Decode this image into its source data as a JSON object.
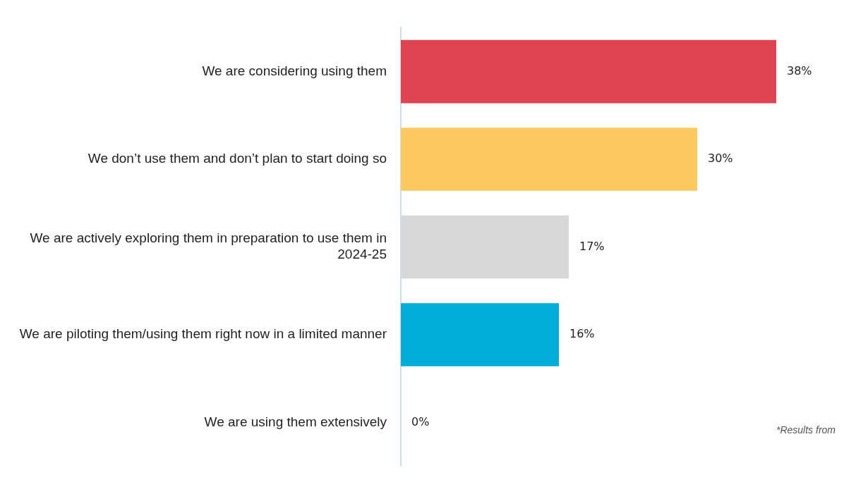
{
  "chart_data": {
    "type": "bar",
    "orientation": "horizontal",
    "categories": [
      "We are considering using them",
      "We don’t use them and don’t plan to start doing so",
      "We are actively exploring them in preparation to use them in 2024-25",
      "We are piloting them/using them right now in a limited manner",
      "We are using them extensively"
    ],
    "values": [
      38,
      30,
      17,
      16,
      0
    ],
    "colors": [
      "#df4350",
      "#fdc95e",
      "#d8d8d8",
      "#00aed9",
      "#00aed9"
    ],
    "value_labels": [
      "38%",
      "30%",
      "17%",
      "16%",
      "0%"
    ],
    "grid": false,
    "legend": false,
    "tick_labels": "y",
    "annotations": [
      "*Results from"
    ]
  }
}
